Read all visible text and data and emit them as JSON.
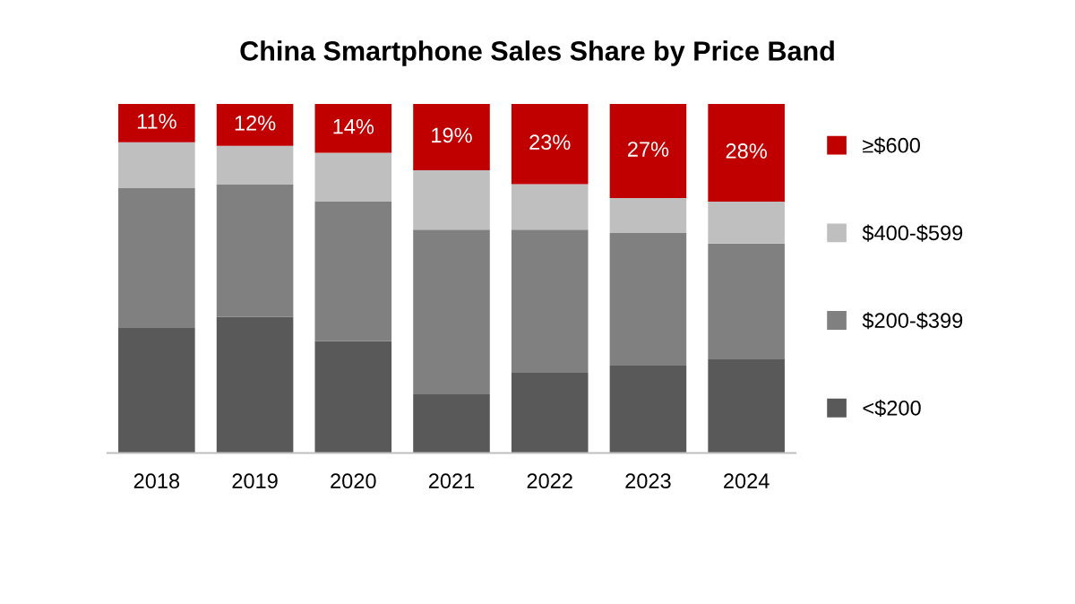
{
  "chart_data": {
    "type": "bar",
    "title": "China Smartphone Sales Share by Price Band",
    "stacked": true,
    "categories": [
      "2018",
      "2019",
      "2020",
      "2021",
      "2022",
      "2023",
      "2024"
    ],
    "series": [
      {
        "name": "<$200",
        "color": "#595959",
        "values": [
          36,
          39,
          32,
          17,
          23,
          25,
          27
        ]
      },
      {
        "name": "$200-$399",
        "color": "#808080",
        "values": [
          40,
          38,
          40,
          47,
          41,
          38,
          33
        ]
      },
      {
        "name": "$400-$599",
        "color": "#bfbfbf",
        "values": [
          13,
          11,
          14,
          17,
          13,
          10,
          12
        ]
      },
      {
        "name": "≥$600",
        "color": "#c00000",
        "values": [
          11,
          12,
          14,
          19,
          23,
          27,
          28
        ],
        "value_labels": [
          "11%",
          "12%",
          "14%",
          "19%",
          "23%",
          "27%",
          "28%"
        ]
      }
    ],
    "ylim": [
      0,
      100
    ],
    "tick_labels": "x",
    "grid": false,
    "legend": "right"
  }
}
